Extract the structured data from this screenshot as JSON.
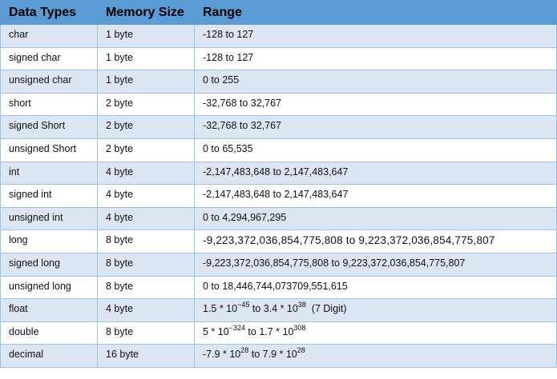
{
  "colors": {
    "header": "#5b9bd5",
    "row_alt": "#dce6f2",
    "border": "#9dc3e6"
  },
  "headers": [
    "Data Types",
    "Memory Size",
    "Range"
  ],
  "rows": [
    {
      "type": "char",
      "size": "1 byte",
      "range": [
        {
          "t": "-128 to 127"
        }
      ]
    },
    {
      "type": "signed char",
      "size": "1 byte",
      "range": [
        {
          "t": "-128 to 127"
        }
      ]
    },
    {
      "type": "unsigned char",
      "size": "1 byte",
      "range": [
        {
          "t": "0 to 255"
        }
      ]
    },
    {
      "type": "short",
      "size": "2 byte",
      "range": [
        {
          "t": "-32,768 to 32,767"
        }
      ]
    },
    {
      "type": "signed Short",
      "size": "2 byte",
      "range": [
        {
          "t": "-32,768 to 32,767"
        }
      ]
    },
    {
      "type": "unsigned Short",
      "size": "2 byte",
      "range": [
        {
          "t": "0 to 65,535"
        }
      ]
    },
    {
      "type": "int",
      "size": "4 byte",
      "range": [
        {
          "t": "-2,147,483,648 to 2,147,483,647"
        }
      ]
    },
    {
      "type": "signed int",
      "size": "4 byte",
      "range": [
        {
          "t": "-2,147,483,648 to 2,147,483,647"
        }
      ]
    },
    {
      "type": "unsigned int",
      "size": "4 byte",
      "range": [
        {
          "t": "0 to 4,294,967,295"
        }
      ]
    },
    {
      "type": "long",
      "size": "8 byte",
      "wide": true,
      "range": [
        {
          "t": "-9,223,372,036,854,775,808 to 9,223,372,036,854,775,807"
        }
      ]
    },
    {
      "type": "signed long",
      "size": "8 byte",
      "range": [
        {
          "t": "-9,223,372,036,854,775,808 to 9,223,372,036,854,775,807"
        }
      ]
    },
    {
      "type": "unsigned long",
      "size": "8 byte",
      "range": [
        {
          "t": "0 to 18,446,744,073709,551,615"
        }
      ]
    },
    {
      "type": "float",
      "size": "4 byte",
      "range": [
        {
          "t": "1.5 * 10"
        },
        {
          "t": "−45",
          "sup": true
        },
        {
          "t": " to 3.4 * 10"
        },
        {
          "t": "38",
          "sup": true
        },
        {
          "t": "  (7 Digit)"
        }
      ]
    },
    {
      "type": "double",
      "size": "8 byte",
      "range": [
        {
          "t": "5 * 10"
        },
        {
          "t": "−324",
          "sup": true
        },
        {
          "t": " to 1.7 * 10"
        },
        {
          "t": "308",
          "sup": true
        }
      ]
    },
    {
      "type": "decimal",
      "size": "16 byte",
      "range": [
        {
          "t": "-7.9 * 10"
        },
        {
          "t": "28",
          "sup": true
        },
        {
          "t": " to 7.9 * 10"
        },
        {
          "t": "28",
          "sup": true
        }
      ]
    }
  ]
}
